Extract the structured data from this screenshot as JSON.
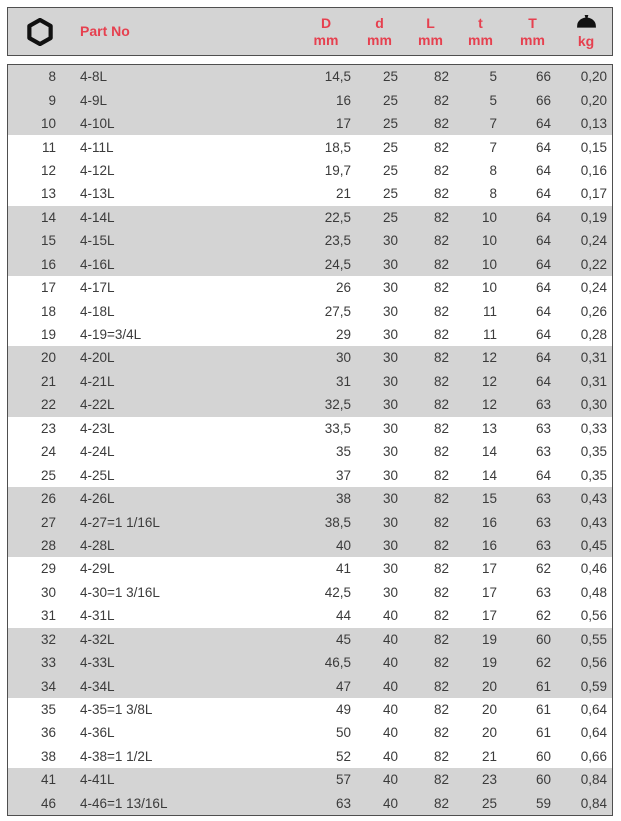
{
  "colors": {
    "accent_red": "#e6404f",
    "band_gray": "#d4d4d4",
    "text": "#3b3b3b",
    "border": "#4f4f4f"
  },
  "header": {
    "hex_icon": "hex-socket-icon",
    "part_no_label": "Part No",
    "columns": [
      {
        "label": "D",
        "unit": "mm"
      },
      {
        "label": "d",
        "unit": "mm"
      },
      {
        "label": "L",
        "unit": "mm"
      },
      {
        "label": "t",
        "unit": "mm"
      },
      {
        "label": "T",
        "unit": "mm"
      },
      {
        "label": "",
        "unit": "kg",
        "icon": "weight-icon"
      }
    ]
  },
  "rows": [
    {
      "size": "8",
      "part": "4-8L",
      "D": "14,5",
      "d": "25",
      "L": "82",
      "t": "5",
      "T": "66",
      "kg": "0,20"
    },
    {
      "size": "9",
      "part": "4-9L",
      "D": "16",
      "d": "25",
      "L": "82",
      "t": "5",
      "T": "66",
      "kg": "0,20"
    },
    {
      "size": "10",
      "part": "4-10L",
      "D": "17",
      "d": "25",
      "L": "82",
      "t": "7",
      "T": "64",
      "kg": "0,13"
    },
    {
      "size": "11",
      "part": "4-11L",
      "D": "18,5",
      "d": "25",
      "L": "82",
      "t": "7",
      "T": "64",
      "kg": "0,15"
    },
    {
      "size": "12",
      "part": "4-12L",
      "D": "19,7",
      "d": "25",
      "L": "82",
      "t": "8",
      "T": "64",
      "kg": "0,16"
    },
    {
      "size": "13",
      "part": "4-13L",
      "D": "21",
      "d": "25",
      "L": "82",
      "t": "8",
      "T": "64",
      "kg": "0,17"
    },
    {
      "size": "14",
      "part": "4-14L",
      "D": "22,5",
      "d": "25",
      "L": "82",
      "t": "10",
      "T": "64",
      "kg": "0,19"
    },
    {
      "size": "15",
      "part": "4-15L",
      "D": "23,5",
      "d": "30",
      "L": "82",
      "t": "10",
      "T": "64",
      "kg": "0,24"
    },
    {
      "size": "16",
      "part": "4-16L",
      "D": "24,5",
      "d": "30",
      "L": "82",
      "t": "10",
      "T": "64",
      "kg": "0,22"
    },
    {
      "size": "17",
      "part": "4-17L",
      "D": "26",
      "d": "30",
      "L": "82",
      "t": "10",
      "T": "64",
      "kg": "0,24"
    },
    {
      "size": "18",
      "part": "4-18L",
      "D": "27,5",
      "d": "30",
      "L": "82",
      "t": "11",
      "T": "64",
      "kg": "0,26"
    },
    {
      "size": "19",
      "part": "4-19=3/4L",
      "D": "29",
      "d": "30",
      "L": "82",
      "t": "11",
      "T": "64",
      "kg": "0,28"
    },
    {
      "size": "20",
      "part": "4-20L",
      "D": "30",
      "d": "30",
      "L": "82",
      "t": "12",
      "T": "64",
      "kg": "0,31"
    },
    {
      "size": "21",
      "part": "4-21L",
      "D": "31",
      "d": "30",
      "L": "82",
      "t": "12",
      "T": "64",
      "kg": "0,31"
    },
    {
      "size": "22",
      "part": "4-22L",
      "D": "32,5",
      "d": "30",
      "L": "82",
      "t": "12",
      "T": "63",
      "kg": "0,30"
    },
    {
      "size": "23",
      "part": "4-23L",
      "D": "33,5",
      "d": "30",
      "L": "82",
      "t": "13",
      "T": "63",
      "kg": "0,33"
    },
    {
      "size": "24",
      "part": "4-24L",
      "D": "35",
      "d": "30",
      "L": "82",
      "t": "14",
      "T": "63",
      "kg": "0,35"
    },
    {
      "size": "25",
      "part": "4-25L",
      "D": "37",
      "d": "30",
      "L": "82",
      "t": "14",
      "T": "64",
      "kg": "0,35"
    },
    {
      "size": "26",
      "part": "4-26L",
      "D": "38",
      "d": "30",
      "L": "82",
      "t": "15",
      "T": "63",
      "kg": "0,43"
    },
    {
      "size": "27",
      "part": "4-27=1 1/16L",
      "D": "38,5",
      "d": "30",
      "L": "82",
      "t": "16",
      "T": "63",
      "kg": "0,43"
    },
    {
      "size": "28",
      "part": "4-28L",
      "D": "40",
      "d": "30",
      "L": "82",
      "t": "16",
      "T": "63",
      "kg": "0,45"
    },
    {
      "size": "29",
      "part": "4-29L",
      "D": "41",
      "d": "30",
      "L": "82",
      "t": "17",
      "T": "62",
      "kg": "0,46"
    },
    {
      "size": "30",
      "part": "4-30=1 3/16L",
      "D": "42,5",
      "d": "30",
      "L": "82",
      "t": "17",
      "T": "63",
      "kg": "0,48"
    },
    {
      "size": "31",
      "part": "4-31L",
      "D": "44",
      "d": "40",
      "L": "82",
      "t": "17",
      "T": "62",
      "kg": "0,56"
    },
    {
      "size": "32",
      "part": "4-32L",
      "D": "45",
      "d": "40",
      "L": "82",
      "t": "19",
      "T": "60",
      "kg": "0,55"
    },
    {
      "size": "33",
      "part": "4-33L",
      "D": "46,5",
      "d": "40",
      "L": "82",
      "t": "19",
      "T": "62",
      "kg": "0,56"
    },
    {
      "size": "34",
      "part": "4-34L",
      "D": "47",
      "d": "40",
      "L": "82",
      "t": "20",
      "T": "61",
      "kg": "0,59"
    },
    {
      "size": "35",
      "part": "4-35=1 3/8L",
      "D": "49",
      "d": "40",
      "L": "82",
      "t": "20",
      "T": "61",
      "kg": "0,64"
    },
    {
      "size": "36",
      "part": "4-36L",
      "D": "50",
      "d": "40",
      "L": "82",
      "t": "20",
      "T": "61",
      "kg": "0,64"
    },
    {
      "size": "38",
      "part": "4-38=1 1/2L",
      "D": "52",
      "d": "40",
      "L": "82",
      "t": "21",
      "T": "60",
      "kg": "0,66"
    },
    {
      "size": "41",
      "part": "4-41L",
      "D": "57",
      "d": "40",
      "L": "82",
      "t": "23",
      "T": "60",
      "kg": "0,84"
    },
    {
      "size": "46",
      "part": "4-46=1 13/16L",
      "D": "63",
      "d": "40",
      "L": "82",
      "t": "25",
      "T": "59",
      "kg": "0,84"
    }
  ]
}
